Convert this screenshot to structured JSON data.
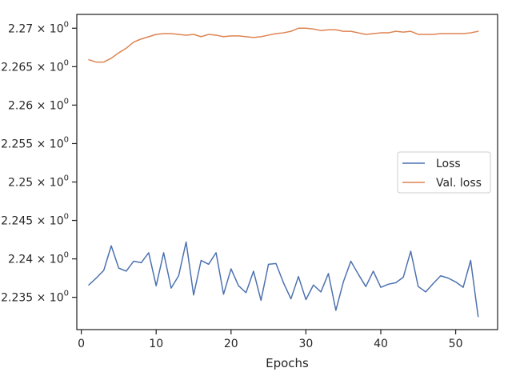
{
  "chart_data": {
    "type": "line",
    "title": "",
    "xlabel": "Epochs",
    "ylabel": "",
    "xlim": [
      -0.6,
      55.6
    ],
    "ylim": [
      2.2308,
      2.2718
    ],
    "x_ticks": [
      0,
      10,
      20,
      30,
      40,
      50
    ],
    "y_ticks": [
      {
        "value": 2.235,
        "mantissa": "2.235"
      },
      {
        "value": 2.24,
        "mantissa": "2.24"
      },
      {
        "value": 2.245,
        "mantissa": "2.245"
      },
      {
        "value": 2.25,
        "mantissa": "2.25"
      },
      {
        "value": 2.255,
        "mantissa": "2.255"
      },
      {
        "value": 2.26,
        "mantissa": "2.26"
      },
      {
        "value": 2.265,
        "mantissa": "2.265"
      },
      {
        "value": 2.27,
        "mantissa": "2.27"
      }
    ],
    "y_tick_suffix": "× 10",
    "y_tick_exponent": "0",
    "grid": false,
    "legend_position": "center-right",
    "series": [
      {
        "name": "Loss",
        "color": "#4c72b0",
        "x": [
          1,
          2,
          3,
          4,
          5,
          6,
          7,
          8,
          9,
          10,
          11,
          12,
          13,
          14,
          15,
          16,
          17,
          18,
          19,
          20,
          21,
          22,
          23,
          24,
          25,
          26,
          27,
          28,
          29,
          30,
          31,
          32,
          33,
          34,
          35,
          36,
          37,
          38,
          39,
          40,
          41,
          42,
          43,
          44,
          45,
          46,
          47,
          48,
          49,
          50,
          51,
          52,
          53
        ],
        "values": [
          2.2366,
          2.2375,
          2.2385,
          2.2417,
          2.2388,
          2.2384,
          2.2397,
          2.2395,
          2.2408,
          2.2365,
          2.2408,
          2.2362,
          2.2378,
          2.2422,
          2.2353,
          2.2398,
          2.2393,
          2.2408,
          2.2354,
          2.2387,
          2.2365,
          2.2356,
          2.2384,
          2.2346,
          2.2393,
          2.2394,
          2.2369,
          2.2348,
          2.2377,
          2.2347,
          2.2366,
          2.2357,
          2.2381,
          2.2333,
          2.237,
          2.2397,
          2.238,
          2.2364,
          2.2384,
          2.2363,
          2.2367,
          2.2369,
          2.2376,
          2.241,
          2.2364,
          2.2357,
          2.2368,
          2.2378,
          2.2375,
          2.237,
          2.2363,
          2.2398,
          2.2325
        ]
      },
      {
        "name": "Val. loss",
        "color": "#dd8452",
        "x": [
          1,
          2,
          3,
          4,
          5,
          6,
          7,
          8,
          9,
          10,
          11,
          12,
          13,
          14,
          15,
          16,
          17,
          18,
          19,
          20,
          21,
          22,
          23,
          24,
          25,
          26,
          27,
          28,
          29,
          30,
          31,
          32,
          33,
          34,
          35,
          36,
          37,
          38,
          39,
          40,
          41,
          42,
          43,
          44,
          45,
          46,
          47,
          48,
          49,
          50,
          51,
          52,
          53
        ],
        "values": [
          2.2659,
          2.2656,
          2.2656,
          2.2661,
          2.2668,
          2.2674,
          2.2682,
          2.2686,
          2.2689,
          2.2692,
          2.2693,
          2.2693,
          2.2692,
          2.2691,
          2.2692,
          2.2689,
          2.2692,
          2.2691,
          2.2689,
          2.269,
          2.269,
          2.2689,
          2.2688,
          2.2689,
          2.2691,
          2.2693,
          2.2694,
          2.2696,
          2.27,
          2.27,
          2.2699,
          2.2697,
          2.2698,
          2.2698,
          2.2696,
          2.2696,
          2.2694,
          2.2692,
          2.2693,
          2.2694,
          2.2694,
          2.2696,
          2.2695,
          2.2696,
          2.2692,
          2.2692,
          2.2692,
          2.2693,
          2.2693,
          2.2693,
          2.2693,
          2.2694,
          2.2696
        ]
      }
    ]
  }
}
